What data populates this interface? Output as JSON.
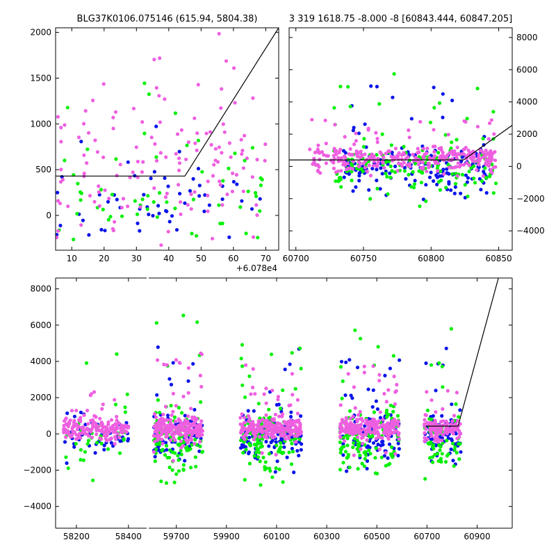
{
  "colors": {
    "blue": "#0a14e8",
    "green": "#00f000",
    "violet": "#ee5fe0"
  },
  "chart_data": [
    {
      "type": "scatter",
      "title": "BLG37K0106.075146 (615.94, 5804.38)",
      "xlabel": "",
      "ylabel": "",
      "x_offset_label": "+6.078e4",
      "xlim": [
        5,
        74
      ],
      "ylim": [
        -380,
        2050
      ],
      "x_ticks": [
        10,
        20,
        30,
        40,
        50,
        60,
        70
      ],
      "x_tick_labels": [
        "10",
        "20",
        "30",
        "40",
        "50",
        "60",
        "70"
      ],
      "y_ticks": [
        0,
        500,
        1000,
        1500,
        2000
      ],
      "y_tick_labels": [
        "0",
        "500",
        "1000",
        "1500",
        "2000"
      ],
      "model_line": {
        "x": [
          5,
          45,
          74
        ],
        "y": [
          430,
          430,
          2050
        ]
      },
      "series": [
        {
          "name": "blue",
          "color": "#0a14e8",
          "n": 55,
          "x_range": [
            5,
            70
          ],
          "y_center": 150,
          "y_spread": 260,
          "y_tail": 700
        },
        {
          "name": "green",
          "color": "#00f000",
          "n": 60,
          "x_range": [
            5,
            70
          ],
          "y_center": 200,
          "y_spread": 320,
          "y_tail": 900
        },
        {
          "name": "violet",
          "color": "#ee5fe0",
          "n": 140,
          "x_range": [
            5,
            70
          ],
          "y_center": 520,
          "y_spread": 330,
          "y_tail": 1600
        }
      ]
    },
    {
      "type": "scatter",
      "title": "3 319 1618.75 -8.000 -8 [60843.444, 60847.205]",
      "xlabel": "",
      "ylabel": "",
      "xlim": [
        60695,
        60860
      ],
      "ylim": [
        -5200,
        8600
      ],
      "x_ticks": [
        60700,
        60750,
        60800,
        60850
      ],
      "x_tick_labels": [
        "60700",
        "60750",
        "60800",
        "60850"
      ],
      "y_ticks": [
        -4000,
        -2000,
        0,
        2000,
        4000,
        6000,
        8000
      ],
      "y_tick_labels": [
        "−4000",
        "−2000",
        "0",
        "2000",
        "4000",
        "6000",
        "8000"
      ],
      "y_axis_side": "right",
      "model_line": {
        "x": [
          60695,
          60824,
          60860
        ],
        "y": [
          400,
          400,
          2550
        ]
      },
      "series": [
        {
          "name": "blue",
          "color": "#0a14e8",
          "n": 170,
          "x_range": [
            60735,
            60845
          ],
          "y_center": -100,
          "y_spread": 700,
          "y_tail": 4000
        },
        {
          "name": "green",
          "color": "#00f000",
          "n": 150,
          "x_range": [
            60728,
            60848
          ],
          "y_center": -200,
          "y_spread": 800,
          "y_tail": 4500
        },
        {
          "name": "violet",
          "color": "#ee5fe0",
          "n": 320,
          "x_range": [
            60710,
            60848
          ],
          "y_center": 450,
          "y_spread": 380,
          "y_tail": 1800
        }
      ]
    },
    {
      "type": "scatter",
      "title": "",
      "xlabel": "",
      "ylabel": "",
      "broken_x_axis": true,
      "ylim": [
        -5200,
        8600
      ],
      "y_ticks": [
        -4000,
        -2000,
        0,
        2000,
        4000,
        6000,
        8000
      ],
      "y_tick_labels": [
        "−4000",
        "−2000",
        "0",
        "2000",
        "4000",
        "6000",
        "8000"
      ],
      "segments": [
        {
          "xlim": [
            58120,
            58470
          ],
          "x_ticks": [
            58200,
            58400
          ],
          "x_tick_labels": [
            "58200",
            "58400"
          ]
        },
        {
          "xlim": [
            59590,
            61040
          ],
          "x_ticks": [
            59700,
            59900,
            60100,
            60300,
            60500,
            60700,
            60900
          ],
          "x_tick_labels": [
            "59700",
            "59900",
            "60100",
            "60300",
            "60500",
            "60700",
            "60900"
          ]
        }
      ],
      "model_line": {
        "x": [
          60695,
          60824,
          60985
        ],
        "y": [
          430,
          430,
          8600
        ]
      },
      "seasons": [
        {
          "x_range": [
            58150,
            58400
          ],
          "counts": [
            40,
            40,
            170
          ],
          "tail": [
            3000,
            3500,
            1500
          ]
        },
        {
          "x_range": [
            59610,
            59805
          ],
          "counts": [
            90,
            110,
            230
          ],
          "tail": [
            3500,
            5000,
            3000
          ]
        },
        {
          "x_range": [
            59955,
            60200
          ],
          "counts": [
            110,
            120,
            240
          ],
          "tail": [
            3500,
            4500,
            2500
          ]
        },
        {
          "x_range": [
            60350,
            60590
          ],
          "counts": [
            110,
            110,
            220
          ],
          "tail": [
            3500,
            5000,
            2500
          ]
        },
        {
          "x_range": [
            60690,
            60835
          ],
          "counts": [
            70,
            60,
            120
          ],
          "tail": [
            3500,
            4500,
            1500
          ]
        }
      ]
    }
  ]
}
